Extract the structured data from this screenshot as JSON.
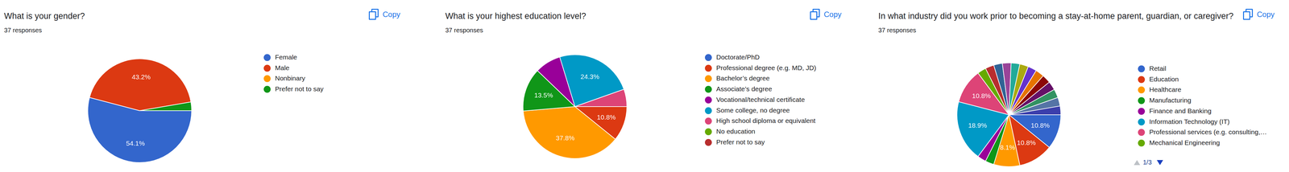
{
  "chart_data": [
    {
      "type": "pie",
      "title": "What is your gender?",
      "subtitle": "37 responses",
      "button": "Copy",
      "categories": [
        "Female",
        "Male",
        "Nonbinary",
        "Prefer not to say"
      ],
      "values": [
        54.1,
        43.2,
        0,
        2.7
      ],
      "value_labels": [
        "54.1%",
        "43.2%",
        null,
        null
      ],
      "colors": [
        "#3366cc",
        "#dc3912",
        "#ff9900",
        "#109618"
      ],
      "data_labels": true,
      "legend": "right"
    },
    {
      "type": "pie",
      "title": "What is your highest education level?",
      "subtitle": "37 responses",
      "button": "Copy",
      "categories": [
        "Doctorate/PhD",
        "Professional degree (e.g. MD, JD)",
        "Bachelor’s degree",
        "Associate’s degree",
        "Vocational/technical certificate",
        "Some college, no degree",
        "High school diploma or equivalent",
        "No education",
        "Prefer not to say"
      ],
      "values": [
        0,
        10.8,
        37.8,
        13.5,
        8.1,
        24.3,
        5.4,
        0,
        0
      ],
      "value_labels": [
        null,
        "10.8%",
        "37.8%",
        "13.5%",
        null,
        "24.3%",
        null,
        null,
        null
      ],
      "colors": [
        "#3366cc",
        "#dc3912",
        "#ff9900",
        "#109618",
        "#990099",
        "#0099c6",
        "#dd4477",
        "#66aa00",
        "#b82e2e"
      ],
      "data_labels": true,
      "legend": "right"
    },
    {
      "type": "pie",
      "title": "In what industry did you work prior to becoming a stay-at-home parent, guardian, or caregiver?",
      "subtitle": "37 responses",
      "button": "Copy",
      "legend_page": "1/3",
      "categories": [
        "Retail",
        "Education",
        "Healthcare",
        "Manufacturing",
        "Finance and Banking",
        "Information Technology (IT)",
        "Professional services (e.g. consulting,…",
        "Mechanical Engineering",
        null,
        null,
        null,
        null,
        null,
        null,
        null,
        null,
        null,
        null,
        null,
        null
      ],
      "values": [
        10.8,
        10.8,
        8.1,
        2.7,
        2.7,
        18.9,
        10.8,
        2.7,
        2.7,
        2.7,
        2.7,
        2.7,
        2.7,
        2.7,
        2.7,
        2.7,
        2.7,
        2.7,
        2.7,
        2.7
      ],
      "value_labels": [
        "10.8%",
        "10.8%",
        "8.1%",
        null,
        null,
        "18.9%",
        "10.8%",
        null,
        null,
        null,
        null,
        null,
        null,
        null,
        null,
        null,
        null,
        null,
        null,
        null
      ],
      "colors": [
        "#3366cc",
        "#dc3912",
        "#ff9900",
        "#109618",
        "#990099",
        "#0099c6",
        "#dd4477",
        "#66aa00",
        "#b82e2e",
        "#316395",
        "#994499",
        "#22aa99",
        "#aaaa11",
        "#6633cc",
        "#e67300",
        "#8b0707",
        "#651067",
        "#329262",
        "#5574a6",
        "#3b3eac"
      ],
      "data_labels": true,
      "legend": "right"
    }
  ]
}
